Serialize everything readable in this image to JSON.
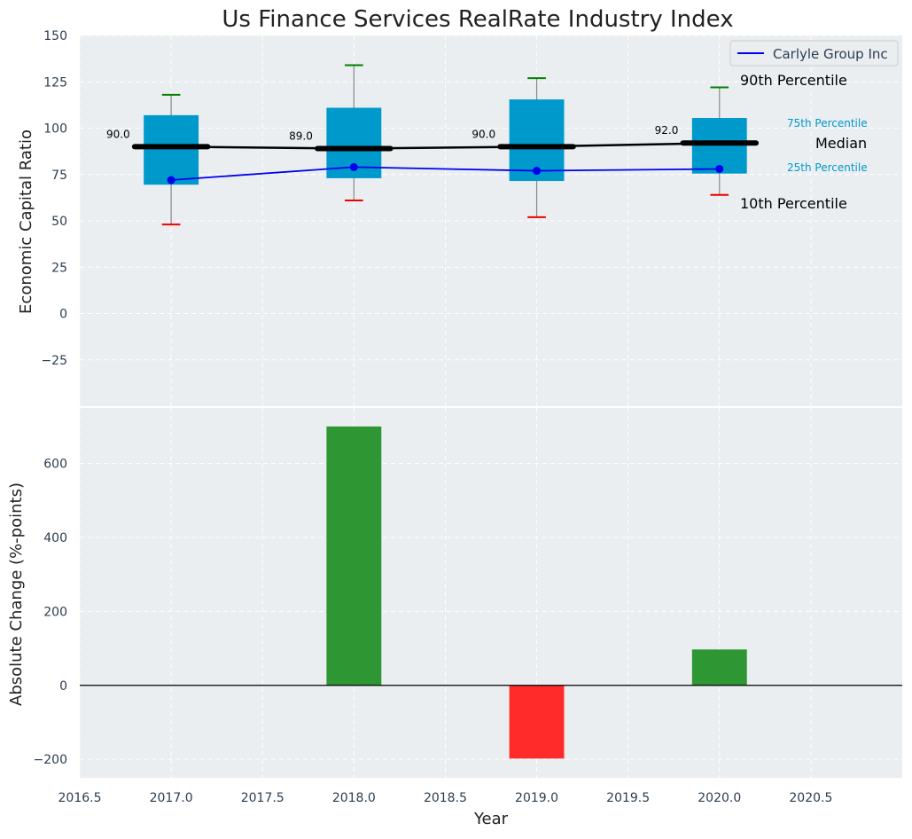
{
  "chart_data": {
    "title": "Us Finance Services RealRate Industry Index",
    "top_panel": {
      "type": "box",
      "ylabel": "Economic Capital Ratio",
      "ylim": [
        -50,
        150
      ],
      "yticks": [
        -25,
        0,
        25,
        50,
        75,
        100,
        125,
        150
      ],
      "ytick_labels": [
        "−25",
        "0",
        "25",
        "50",
        "75",
        "100",
        "125",
        "150"
      ],
      "grid": true,
      "legend_position": "top-right",
      "x": [
        2017,
        2018,
        2019,
        2020
      ],
      "p10": [
        48,
        61,
        52,
        64
      ],
      "p25": [
        69.5,
        73,
        71.5,
        75.5
      ],
      "median": [
        90.0,
        89.0,
        90.0,
        92.0
      ],
      "median_labels": [
        "90.0",
        "89.0",
        "90.0",
        "92.0"
      ],
      "p75": [
        107,
        111,
        115.5,
        105.5
      ],
      "p90": [
        118,
        134,
        127,
        122
      ],
      "series": [
        {
          "name": "Carlyle Group Inc",
          "color": "#0000ee",
          "values": [
            72,
            79,
            77,
            78
          ]
        }
      ],
      "annotations": {
        "p90": "90th Percentile",
        "p75": "75th Percentile",
        "median": "Median",
        "p25": "25th Percentile",
        "p10": "10th Percentile"
      }
    },
    "bottom_panel": {
      "type": "bar",
      "ylabel": "Absolute Change (%-points)",
      "xlabel": "Year",
      "ylim": [
        -250,
        750
      ],
      "yticks": [
        -200,
        0,
        200,
        400,
        600
      ],
      "ytick_labels": [
        "−200",
        "0",
        "200",
        "400",
        "600"
      ],
      "grid": true,
      "x": [
        2018,
        2019,
        2020
      ],
      "values": [
        700,
        -198,
        97
      ],
      "xlim": [
        2016.5,
        2021.0
      ],
      "xticks": [
        2016.5,
        2017.0,
        2017.5,
        2018.0,
        2018.5,
        2019.0,
        2019.5,
        2020.0,
        2020.5
      ],
      "xtick_labels": [
        "2016.5",
        "2017.0",
        "2017.5",
        "2018.0",
        "2018.5",
        "2019.0",
        "2019.5",
        "2020.0",
        "2020.5"
      ]
    },
    "colors": {
      "box": "#0099cc",
      "median": "#000000",
      "p90_cap": "#008000",
      "p10_cap": "#ee0000",
      "positive_bar": "#2e9632",
      "negative_bar": "#ff2b2b",
      "panel_bg": "#eaeef0",
      "tick_text": "#2b3e50",
      "annotation_blue": "#0099cc"
    }
  }
}
